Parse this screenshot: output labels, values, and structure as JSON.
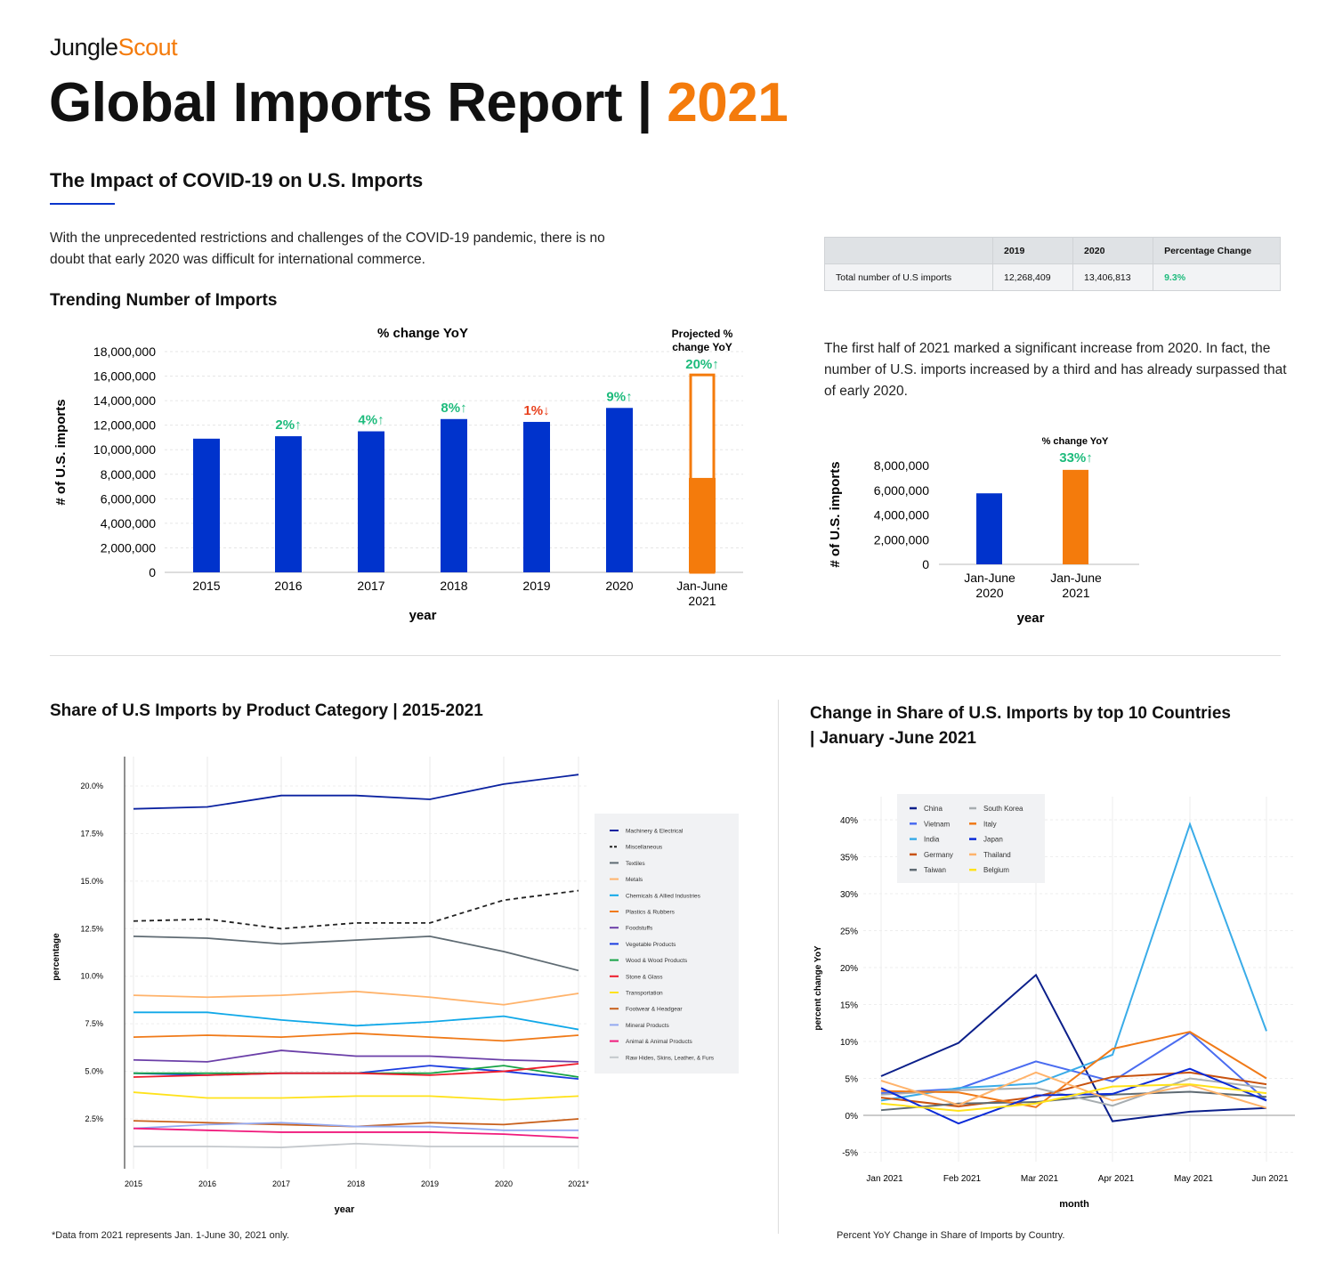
{
  "brand": {
    "part1": "Jungle",
    "part2": "Scout"
  },
  "title": {
    "main": "Global Imports Report | ",
    "year": "2021"
  },
  "section1": {
    "heading": "The Impact of COVID-19 on U.S. Imports",
    "intro": "With the unprecedented restrictions and challenges of the COVID-19 pandemic, there is no doubt that early 2020 was difficult for international commerce.",
    "subheading": "Trending Number of Imports",
    "right_text": "The first half of 2021 marked a significant increase from 2020. In fact, the number of U.S. imports increased by a third and has already surpassed that of early 2020."
  },
  "table": {
    "headers": [
      "",
      "2019",
      "2020",
      "Percentage Change"
    ],
    "row": [
      "Total number of U.S imports",
      "12,268,409",
      "13,406,813",
      "9.3%"
    ]
  },
  "section2": {
    "left_heading": "Share of U.S Imports by Product Category | 2015-2021",
    "right_heading": "Change in Share of U.S. Imports by top 10 Countries | January -June 2021",
    "left_note": "*Data from 2021 represents Jan. 1-June 30, 2021 only.",
    "right_note": "Percent YoY Change in Share of Imports by Country."
  },
  "colors": {
    "accent": "#f47b0c",
    "blue": "#0033cc",
    "green": "#1dbb7c",
    "red": "#e8401c"
  },
  "chart_data": [
    {
      "type": "bar",
      "title": "% change YoY",
      "xlabel": "year",
      "ylabel": "# of U.S. imports",
      "ylim": [
        0,
        18000000
      ],
      "yticks": [
        "0",
        "2,000,000",
        "4,000,000",
        "6,000,000",
        "8,000,000",
        "10,000,000",
        "12,000,000",
        "14,000,000",
        "16,000,000",
        "18,000,000"
      ],
      "categories": [
        "2015",
        "2016",
        "2017",
        "2018",
        "2019",
        "2020",
        "Jan-June 2021"
      ],
      "values": [
        10900000,
        11100000,
        11500000,
        12500000,
        12268409,
        13406813,
        7700000
      ],
      "projected": {
        "label": "Projected % change YoY",
        "value": 16100000,
        "change": "20%↑"
      },
      "changes": [
        "",
        "2%↑",
        "4%↑",
        "8%↑",
        "1%↓",
        "9%↑",
        ""
      ],
      "change_dirs": [
        "",
        "up",
        "up",
        "up",
        "down",
        "up",
        ""
      ]
    },
    {
      "type": "bar",
      "title": "% change YoY",
      "xlabel": "year",
      "ylabel": "# of U.S. imports",
      "ylim": [
        0,
        8000000
      ],
      "yticks": [
        "0",
        "2,000,000",
        "4,000,000",
        "6,000,000",
        "8,000,000"
      ],
      "categories": [
        "Jan-June 2020",
        "Jan-June 2021"
      ],
      "values": [
        5750000,
        7650000
      ],
      "change": "33%↑"
    },
    {
      "type": "line",
      "xlabel": "year",
      "ylabel": "percentage",
      "ylim": [
        0.5,
        21.5
      ],
      "yticks": [
        "2.5%",
        "5.0%",
        "7.5%",
        "10.0%",
        "12.5%",
        "15.0%",
        "17.5%",
        "20.0%"
      ],
      "x": [
        "2015",
        "2016",
        "2017",
        "2018",
        "2019",
        "2020",
        "2021*"
      ],
      "legend": "right",
      "series": [
        {
          "name": "Machinery & Electrical",
          "color": "#0b22a0",
          "values": [
            18.8,
            18.9,
            19.5,
            19.5,
            19.3,
            20.1,
            20.6
          ]
        },
        {
          "name": "Miscellaneous",
          "color": "#222222",
          "dash": true,
          "values": [
            12.9,
            13.0,
            12.5,
            12.8,
            12.8,
            14.0,
            14.5
          ]
        },
        {
          "name": "Textiles",
          "color": "#5f6b73",
          "values": [
            12.1,
            12.0,
            11.7,
            11.9,
            12.1,
            11.3,
            10.3
          ]
        },
        {
          "name": "Metals",
          "color": "#ffb36b",
          "values": [
            9.0,
            8.9,
            9.0,
            9.2,
            8.9,
            8.5,
            9.1
          ]
        },
        {
          "name": "Chemicals & Allied Industries",
          "color": "#10a8e8",
          "values": [
            8.1,
            8.1,
            7.7,
            7.4,
            7.6,
            7.9,
            7.2
          ]
        },
        {
          "name": "Plastics & Rubbers",
          "color": "#f07a18",
          "values": [
            6.8,
            6.9,
            6.8,
            7.0,
            6.8,
            6.6,
            6.9
          ]
        },
        {
          "name": "Foodstuffs",
          "color": "#6b3fa8",
          "values": [
            5.6,
            5.5,
            6.1,
            5.8,
            5.8,
            5.6,
            5.5
          ]
        },
        {
          "name": "Vegetable Products",
          "color": "#1a3ce0",
          "values": [
            4.9,
            4.8,
            4.9,
            4.9,
            5.3,
            5.0,
            4.6
          ]
        },
        {
          "name": "Wood & Wood Products",
          "color": "#17a347",
          "values": [
            4.9,
            4.9,
            4.9,
            4.9,
            4.9,
            5.3,
            4.7
          ]
        },
        {
          "name": "Stone & Glass",
          "color": "#ee1c2c",
          "values": [
            4.7,
            4.8,
            4.9,
            4.9,
            4.8,
            5.0,
            5.4
          ]
        },
        {
          "name": "Transportation",
          "color": "#ffe21a",
          "values": [
            3.9,
            3.6,
            3.6,
            3.7,
            3.7,
            3.5,
            3.7
          ]
        },
        {
          "name": "Footwear & Headgear",
          "color": "#c8601c",
          "values": [
            2.4,
            2.3,
            2.2,
            2.1,
            2.3,
            2.2,
            2.5
          ]
        },
        {
          "name": "Mineral Products",
          "color": "#93a8f0",
          "values": [
            2.0,
            2.2,
            2.3,
            2.1,
            2.1,
            1.9,
            1.9
          ]
        },
        {
          "name": "Animal & Animal Products",
          "color": "#f01a7c",
          "values": [
            2.0,
            1.9,
            1.8,
            1.8,
            1.8,
            1.7,
            1.5
          ]
        },
        {
          "name": "Raw Hides, Skins, Leather, & Furs",
          "color": "#c4c8cc",
          "values": [
            1.05,
            1.05,
            1.0,
            1.2,
            1.05,
            1.05,
            1.05
          ]
        }
      ]
    },
    {
      "type": "line",
      "xlabel": "month",
      "ylabel": "percent change YoY",
      "ylim": [
        -7,
        42
      ],
      "yticks": [
        "-5%",
        "0%",
        "5%",
        "10%",
        "15%",
        "20%",
        "25%",
        "30%",
        "35%",
        "40%"
      ],
      "x": [
        "Jan 2021",
        "Feb 2021",
        "Mar 2021",
        "Apr 2021",
        "May 2021",
        "Jun 2021"
      ],
      "legend": "top-left",
      "series": [
        {
          "name": "China",
          "color": "#0b1f8a",
          "values": [
            5.3,
            9.8,
            19,
            -0.8,
            0.5,
            1
          ]
        },
        {
          "name": "Vietnam",
          "color": "#4a6cf0",
          "values": [
            3,
            3.6,
            7.3,
            4.6,
            11.2,
            2
          ]
        },
        {
          "name": "India",
          "color": "#3aace8",
          "values": [
            2,
            3.7,
            4.3,
            8.2,
            39.4,
            11.4
          ]
        },
        {
          "name": "Germany",
          "color": "#c8520e",
          "values": [
            2.4,
            1.2,
            2.5,
            5.2,
            5.8,
            4.2
          ]
        },
        {
          "name": "Taiwan",
          "color": "#5f6b73",
          "values": [
            0.7,
            1.6,
            1.8,
            2.8,
            3.2,
            2.5
          ]
        },
        {
          "name": "South Korea",
          "color": "#a7adb0",
          "values": [
            2.8,
            3.4,
            3.7,
            1.3,
            5.0,
            3.7
          ]
        },
        {
          "name": "Italy",
          "color": "#f07a18",
          "values": [
            3.3,
            3.1,
            1.1,
            9,
            11.3,
            5
          ]
        },
        {
          "name": "Japan",
          "color": "#0a2ad8",
          "values": [
            3.7,
            -1.1,
            2.7,
            2.9,
            6.3,
            2
          ]
        },
        {
          "name": "Thailand",
          "color": "#ffb36b",
          "values": [
            4.7,
            1.4,
            5.8,
            2,
            4.1,
            1
          ]
        },
        {
          "name": "Belgium",
          "color": "#ffe21a",
          "values": [
            1.6,
            0.6,
            1.6,
            3.9,
            4.2,
            3
          ]
        }
      ]
    }
  ]
}
